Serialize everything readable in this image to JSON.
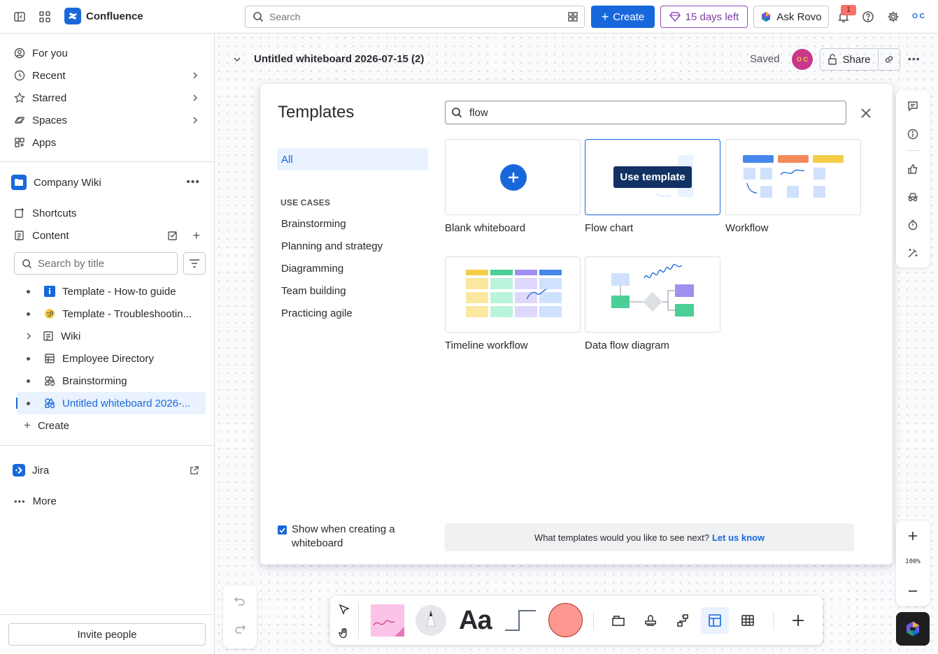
{
  "topbar": {
    "brand": "Confluence",
    "search_placeholder": "Search",
    "create_label": "Create",
    "trial_label": "15 days left",
    "rovo_label": "Ask Rovo",
    "notification_count": "1",
    "avatar_initials": "O C"
  },
  "sidebar": {
    "nav": [
      {
        "label": "For you"
      },
      {
        "label": "Recent"
      },
      {
        "label": "Starred"
      },
      {
        "label": "Spaces"
      },
      {
        "label": "Apps"
      }
    ],
    "space_name": "Company Wiki",
    "shortcuts_label": "Shortcuts",
    "content_label": "Content",
    "search_placeholder": "Search by title",
    "tree": [
      {
        "label": "Template - How-to guide"
      },
      {
        "label": "Template - Troubleshootin..."
      },
      {
        "label": "Wiki"
      },
      {
        "label": "Employee Directory"
      },
      {
        "label": "Brainstorming"
      },
      {
        "label": "Untitled whiteboard 2026-..."
      }
    ],
    "create_label": "Create",
    "jira_label": "Jira",
    "more_label": "More",
    "invite_label": "Invite people"
  },
  "page": {
    "title": "Untitled whiteboard 2026-07-15 (2)",
    "status": "Saved",
    "avatar_initials": "O C",
    "share_label": "Share"
  },
  "templates_modal": {
    "title": "Templates",
    "all_label": "All",
    "use_cases_heading": "USE CASES",
    "categories": [
      "Brainstorming",
      "Planning and strategy",
      "Diagramming",
      "Team building",
      "Practicing agile"
    ],
    "search_value": "flow",
    "use_template_label": "Use template",
    "templates": [
      {
        "name": "Blank whiteboard"
      },
      {
        "name": "Flow chart"
      },
      {
        "name": "Workflow"
      },
      {
        "name": "Timeline workflow"
      },
      {
        "name": "Data flow diagram"
      }
    ],
    "show_checkbox_label": "Show when creating a whiteboard",
    "show_checkbox_checked": true,
    "footer_text": "What templates would you like to see next?",
    "footer_link": "Let us know"
  },
  "zoom": {
    "level": "100%"
  },
  "colors": {
    "brand_blue": "#1868db",
    "trial_purple": "#803fa5",
    "sticky_pink": "#fbc3e8",
    "shape_red": "#fd9891"
  }
}
